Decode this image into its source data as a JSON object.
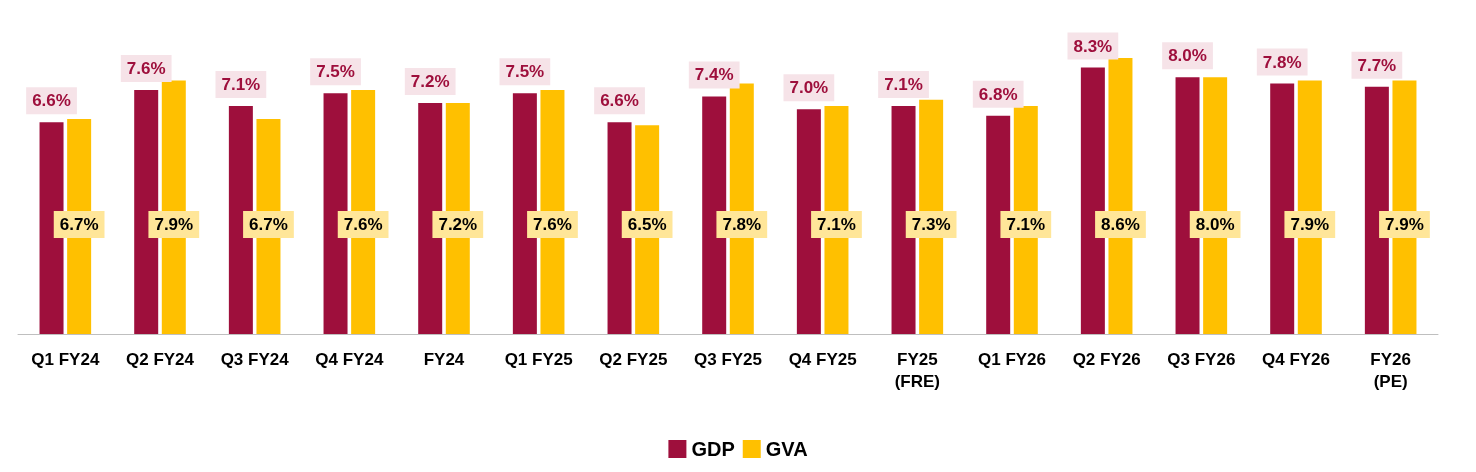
{
  "chart_data": {
    "type": "bar",
    "categories": [
      "Q1 FY24",
      "Q2 FY24",
      "Q3 FY24",
      "Q4 FY24",
      "FY24",
      "Q1 FY25",
      "Q2 FY25",
      "Q3 FY25",
      "Q4 FY25",
      "FY25 (FRE)",
      "Q1 FY26",
      "Q2 FY26",
      "Q3 FY26",
      "Q4 FY26",
      "FY26 (PE)"
    ],
    "series": [
      {
        "name": "GDP",
        "color": "#9e0f3c",
        "values": [
          6.6,
          7.6,
          7.1,
          7.5,
          7.2,
          7.5,
          6.6,
          7.4,
          7.0,
          7.1,
          6.8,
          8.3,
          8.0,
          7.8,
          7.7
        ],
        "value_labels": [
          "6.6%",
          "7.6%",
          "7.1%",
          "7.5%",
          "7.2%",
          "7.5%",
          "6.6%",
          "7.4%",
          "7.0%",
          "7.1%",
          "6.8%",
          "8.3%",
          "8.0%",
          "7.8%",
          "7.7%"
        ]
      },
      {
        "name": "GVA",
        "color": "#ffc000",
        "values": [
          6.7,
          7.9,
          6.7,
          7.6,
          7.2,
          7.6,
          6.5,
          7.8,
          7.1,
          7.3,
          7.1,
          8.6,
          8.0,
          7.9,
          7.9
        ],
        "value_labels": [
          "6.7%",
          "7.9%",
          "6.7%",
          "7.6%",
          "7.2%",
          "7.6%",
          "6.5%",
          "7.8%",
          "7.1%",
          "7.3%",
          "7.1%",
          "8.6%",
          "8.0%",
          "7.9%",
          "7.9%"
        ]
      }
    ],
    "legend": "bottom",
    "grid": false
  }
}
